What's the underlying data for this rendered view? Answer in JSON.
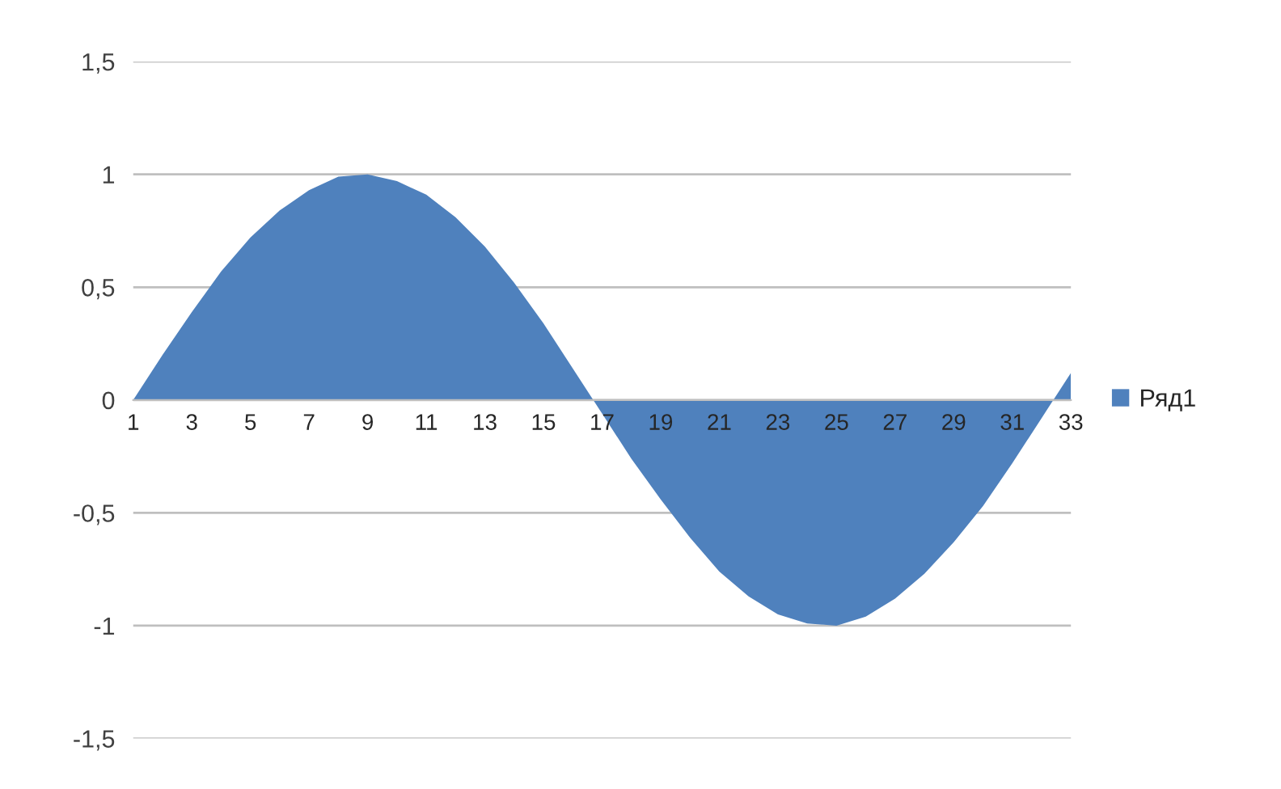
{
  "chart_data": {
    "type": "area",
    "categories": [
      "1",
      null,
      "3",
      null,
      "5",
      null,
      "7",
      null,
      "9",
      null,
      "11",
      null,
      "13",
      null,
      "15",
      null,
      "17",
      null,
      "19",
      null,
      "21",
      null,
      "23",
      null,
      "25",
      null,
      "27",
      null,
      "29",
      null,
      "31",
      null,
      "33"
    ],
    "series": [
      {
        "name": "Ряд1",
        "color": "#4f81bd",
        "values": [
          0,
          0.2,
          0.39,
          0.57,
          0.72,
          0.84,
          0.93,
          0.99,
          1.0,
          0.97,
          0.91,
          0.81,
          0.68,
          0.52,
          0.34,
          0.14,
          -0.06,
          -0.26,
          -0.44,
          -0.61,
          -0.76,
          -0.87,
          -0.95,
          -0.99,
          -1.0,
          -0.96,
          -0.88,
          -0.77,
          -0.63,
          -0.47,
          -0.28,
          -0.08,
          0.12
        ]
      }
    ],
    "ylim": [
      -1.5,
      1.5
    ],
    "yticks": [
      {
        "value": -1.5,
        "label": "-1,5"
      },
      {
        "value": -1,
        "label": "-1"
      },
      {
        "value": -0.5,
        "label": "-0,5"
      },
      0,
      {
        "value": 0.5,
        "label": "0,5"
      },
      1,
      {
        "value": 1.5,
        "label": "1,5"
      }
    ],
    "grid": "y",
    "legend": "right"
  }
}
